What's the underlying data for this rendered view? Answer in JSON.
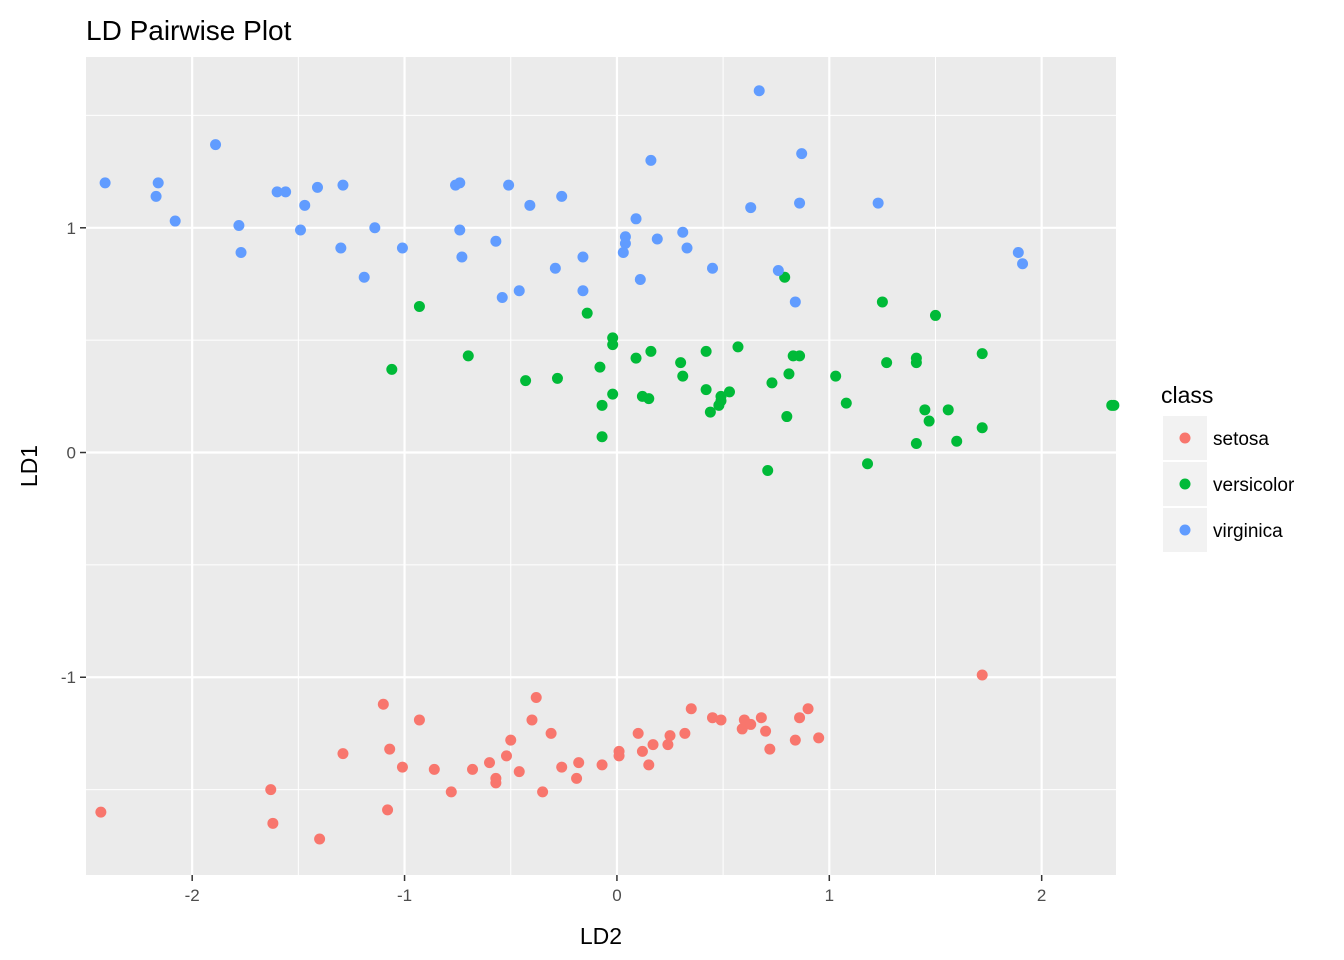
{
  "chart_data": {
    "type": "scatter",
    "title": "LD Pairwise Plot",
    "xlabel": "LD2",
    "ylabel": "LD1",
    "xlim": [
      -2.5,
      2.35
    ],
    "ylim": [
      -1.88,
      1.76
    ],
    "x_ticks": [
      -2,
      -1,
      0,
      1,
      2
    ],
    "y_ticks": [
      -1,
      0,
      1
    ],
    "x_tick_labels": [
      "-2",
      "-1",
      "0",
      "1",
      "2"
    ],
    "y_tick_labels": [
      "-1",
      "0",
      "1"
    ],
    "grid": true,
    "legend": {
      "title": "class",
      "position": "right"
    },
    "series": [
      {
        "name": "setosa",
        "color": "#F8766D",
        "points": [
          [
            -2.43,
            -1.6
          ],
          [
            -1.63,
            -1.5
          ],
          [
            -1.62,
            -1.65
          ],
          [
            -1.4,
            -1.72
          ],
          [
            -1.29,
            -1.34
          ],
          [
            -1.1,
            -1.12
          ],
          [
            -1.08,
            -1.59
          ],
          [
            -1.07,
            -1.32
          ],
          [
            -1.01,
            -1.4
          ],
          [
            -0.93,
            -1.19
          ],
          [
            -0.86,
            -1.41
          ],
          [
            -0.78,
            -1.51
          ],
          [
            -0.68,
            -1.41
          ],
          [
            -0.6,
            -1.38
          ],
          [
            -0.57,
            -1.45
          ],
          [
            -0.57,
            -1.47
          ],
          [
            -0.52,
            -1.35
          ],
          [
            -0.5,
            -1.28
          ],
          [
            -0.46,
            -1.42
          ],
          [
            -0.4,
            -1.19
          ],
          [
            -0.38,
            -1.09
          ],
          [
            -0.35,
            -1.51
          ],
          [
            -0.31,
            -1.25
          ],
          [
            -0.26,
            -1.4
          ],
          [
            -0.19,
            -1.45
          ],
          [
            -0.18,
            -1.38
          ],
          [
            -0.07,
            -1.39
          ],
          [
            0.01,
            -1.33
          ],
          [
            0.01,
            -1.35
          ],
          [
            0.1,
            -1.25
          ],
          [
            0.12,
            -1.33
          ],
          [
            0.15,
            -1.39
          ],
          [
            0.17,
            -1.3
          ],
          [
            0.24,
            -1.3
          ],
          [
            0.25,
            -1.26
          ],
          [
            0.32,
            -1.25
          ],
          [
            0.35,
            -1.14
          ],
          [
            0.45,
            -1.18
          ],
          [
            0.49,
            -1.19
          ],
          [
            0.59,
            -1.23
          ],
          [
            0.6,
            -1.19
          ],
          [
            0.63,
            -1.21
          ],
          [
            0.68,
            -1.18
          ],
          [
            0.7,
            -1.24
          ],
          [
            0.72,
            -1.32
          ],
          [
            0.84,
            -1.28
          ],
          [
            0.86,
            -1.18
          ],
          [
            0.9,
            -1.14
          ],
          [
            0.95,
            -1.27
          ],
          [
            1.72,
            -0.99
          ]
        ]
      },
      {
        "name": "versicolor",
        "color": "#00BA38",
        "points": [
          [
            -1.06,
            0.37
          ],
          [
            -0.93,
            0.65
          ],
          [
            -0.7,
            0.43
          ],
          [
            -0.43,
            0.32
          ],
          [
            -0.28,
            0.33
          ],
          [
            -0.14,
            0.62
          ],
          [
            -0.08,
            0.38
          ],
          [
            -0.07,
            0.21
          ],
          [
            -0.07,
            0.07
          ],
          [
            -0.02,
            0.51
          ],
          [
            -0.02,
            0.48
          ],
          [
            -0.02,
            0.26
          ],
          [
            0.09,
            0.42
          ],
          [
            0.12,
            0.25
          ],
          [
            0.15,
            0.24
          ],
          [
            0.16,
            0.45
          ],
          [
            0.3,
            0.4
          ],
          [
            0.31,
            0.34
          ],
          [
            0.42,
            0.45
          ],
          [
            0.42,
            0.28
          ],
          [
            0.44,
            0.18
          ],
          [
            0.48,
            0.21
          ],
          [
            0.49,
            0.23
          ],
          [
            0.49,
            0.25
          ],
          [
            0.53,
            0.27
          ],
          [
            0.57,
            0.47
          ],
          [
            0.71,
            -0.08
          ],
          [
            0.73,
            0.31
          ],
          [
            0.79,
            0.78
          ],
          [
            0.8,
            0.16
          ],
          [
            0.81,
            0.35
          ],
          [
            0.83,
            0.43
          ],
          [
            0.86,
            0.43
          ],
          [
            1.03,
            0.34
          ],
          [
            1.08,
            0.22
          ],
          [
            1.18,
            -0.05
          ],
          [
            1.25,
            0.67
          ],
          [
            1.27,
            0.4
          ],
          [
            1.41,
            0.4
          ],
          [
            1.41,
            0.42
          ],
          [
            1.41,
            0.04
          ],
          [
            1.45,
            0.19
          ],
          [
            1.47,
            0.14
          ],
          [
            1.5,
            0.61
          ],
          [
            1.56,
            0.19
          ],
          [
            1.6,
            0.05
          ],
          [
            1.72,
            0.44
          ],
          [
            1.72,
            0.11
          ],
          [
            2.33,
            0.21
          ],
          [
            2.34,
            0.21
          ]
        ]
      },
      {
        "name": "virginica",
        "color": "#619CFF",
        "points": [
          [
            -2.41,
            1.2
          ],
          [
            -2.17,
            1.14
          ],
          [
            -2.16,
            1.2
          ],
          [
            -2.08,
            1.03
          ],
          [
            -1.89,
            1.37
          ],
          [
            -1.78,
            1.01
          ],
          [
            -1.77,
            0.89
          ],
          [
            -1.6,
            1.16
          ],
          [
            -1.56,
            1.16
          ],
          [
            -1.49,
            0.99
          ],
          [
            -1.47,
            1.1
          ],
          [
            -1.41,
            1.18
          ],
          [
            -1.3,
            0.91
          ],
          [
            -1.29,
            1.19
          ],
          [
            -1.19,
            0.78
          ],
          [
            -1.14,
            1.0
          ],
          [
            -1.01,
            0.91
          ],
          [
            -0.76,
            1.19
          ],
          [
            -0.74,
            1.2
          ],
          [
            -0.74,
            0.99
          ],
          [
            -0.73,
            0.87
          ],
          [
            -0.57,
            0.94
          ],
          [
            -0.54,
            0.69
          ],
          [
            -0.51,
            1.19
          ],
          [
            -0.46,
            0.72
          ],
          [
            -0.41,
            1.1
          ],
          [
            -0.29,
            0.82
          ],
          [
            -0.26,
            1.14
          ],
          [
            -0.16,
            0.87
          ],
          [
            -0.16,
            0.72
          ],
          [
            0.03,
            0.89
          ],
          [
            0.04,
            0.96
          ],
          [
            0.04,
            0.93
          ],
          [
            0.09,
            1.04
          ],
          [
            0.11,
            0.77
          ],
          [
            0.16,
            1.3
          ],
          [
            0.19,
            0.95
          ],
          [
            0.31,
            0.98
          ],
          [
            0.33,
            0.91
          ],
          [
            0.45,
            0.82
          ],
          [
            0.63,
            1.09
          ],
          [
            0.67,
            1.61
          ],
          [
            0.76,
            0.81
          ],
          [
            0.84,
            0.67
          ],
          [
            0.86,
            1.11
          ],
          [
            0.87,
            1.33
          ],
          [
            1.23,
            1.11
          ],
          [
            1.89,
            0.89
          ],
          [
            1.91,
            0.84
          ]
        ]
      }
    ]
  }
}
